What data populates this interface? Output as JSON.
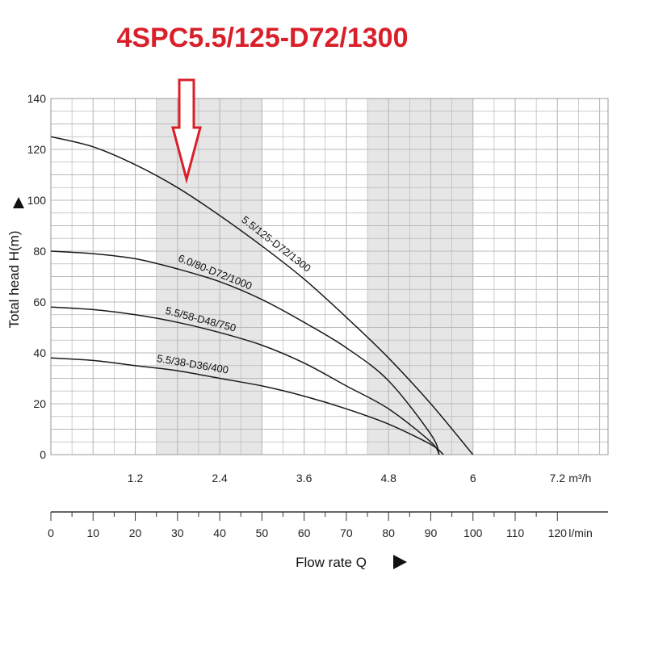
{
  "title": "4SPC5.5/125-D72/1300",
  "colors": {
    "title": "#d9202a",
    "grid": "#b9b9b9",
    "band": "#e6e6e6",
    "curve": "#1a1a1a",
    "arrow": "#d9202a"
  },
  "chart_data": {
    "type": "line",
    "xlabel": "Flow rate Q",
    "ylabel": "Total head H(m)",
    "xlim": [
      0,
      132
    ],
    "ylim": [
      0,
      140
    ],
    "y_ticks": [
      "0",
      "20",
      "40",
      "60",
      "80",
      "100",
      "120",
      "140"
    ],
    "y_tick_values": [
      0,
      20,
      40,
      60,
      80,
      100,
      120,
      140
    ],
    "x_ticks_m3h": [
      "1.2",
      "2.4",
      "3.6",
      "4.8",
      "6",
      "7.2"
    ],
    "x_tick_values_m3h": [
      1.2,
      2.4,
      3.6,
      4.8,
      6,
      7.2
    ],
    "x_unit_m3h": "m³/h",
    "x_ticks_lmin": [
      "0",
      "10",
      "20",
      "30",
      "40",
      "50",
      "60",
      "70",
      "80",
      "90",
      "100",
      "110",
      "120"
    ],
    "x_tick_values_lmin": [
      0,
      10,
      20,
      30,
      40,
      50,
      60,
      70,
      80,
      90,
      100,
      110,
      120
    ],
    "x_unit_lmin": "l/min",
    "shaded_bands_lmin": [
      [
        25,
        50
      ],
      [
        75,
        100
      ]
    ],
    "series": [
      {
        "name": "5.5/125-D72/1300",
        "x": [
          0,
          10,
          20,
          30,
          40,
          50,
          60,
          70,
          80,
          90,
          100
        ],
        "y": [
          125,
          121,
          114,
          105,
          94,
          82,
          69,
          54,
          38,
          20,
          0
        ]
      },
      {
        "name": "6.0/80-D72/1000",
        "x": [
          0,
          10,
          20,
          30,
          40,
          50,
          60,
          70,
          80,
          90,
          92
        ],
        "y": [
          80,
          79,
          77,
          73,
          68,
          61,
          52,
          42,
          29,
          8,
          0
        ]
      },
      {
        "name": "5.5/58-D48/750",
        "x": [
          0,
          10,
          20,
          30,
          40,
          50,
          60,
          70,
          80,
          90,
          92
        ],
        "y": [
          58,
          57,
          55,
          52,
          48,
          43,
          36,
          27,
          18,
          5,
          0
        ]
      },
      {
        "name": "5.5/38-D36/400",
        "x": [
          0,
          10,
          20,
          30,
          40,
          50,
          60,
          70,
          80,
          90,
          93
        ],
        "y": [
          38,
          37,
          35,
          33,
          30,
          27,
          23,
          18,
          12,
          4,
          0
        ]
      }
    ],
    "grid": true
  }
}
